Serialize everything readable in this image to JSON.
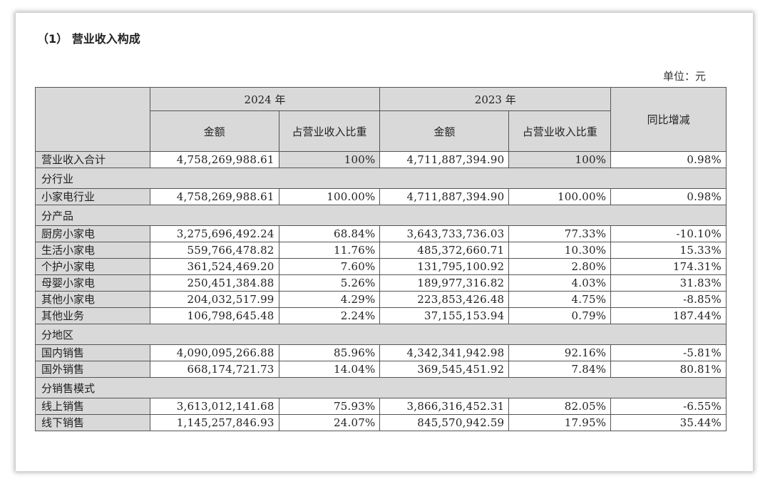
{
  "title": "（1） 营业收入构成",
  "unit": "单位：元",
  "headers": {
    "year_2024": "2024 年",
    "year_2023": "2023 年",
    "amount": "金额",
    "ratio_2024": "占营业收入比重",
    "ratio_2023": "占营业收入比重",
    "yoy": "同比增减"
  },
  "total": {
    "label": "营业收入合计",
    "amt2024": "4,758,269,988.61",
    "pct2024": "100%",
    "amt2023": "4,711,887,394.90",
    "pct2023": "100%",
    "yoy": "0.98%"
  },
  "sections": {
    "industry": "分行业",
    "product": "分产品",
    "region": "分地区",
    "channel": "分销售模式"
  },
  "industry_rows": [
    {
      "label": "小家电行业",
      "amt2024": "4,758,269,988.61",
      "pct2024": "100.00%",
      "amt2023": "4,711,887,394.90",
      "pct2023": "100.00%",
      "yoy": "0.98%"
    }
  ],
  "product_rows": [
    {
      "label": "厨房小家电",
      "amt2024": "3,275,696,492.24",
      "pct2024": "68.84%",
      "amt2023": "3,643,733,736.03",
      "pct2023": "77.33%",
      "yoy": "-10.10%"
    },
    {
      "label": "生活小家电",
      "amt2024": "559,766,478.82",
      "pct2024": "11.76%",
      "amt2023": "485,372,660.71",
      "pct2023": "10.30%",
      "yoy": "15.33%"
    },
    {
      "label": "个护小家电",
      "amt2024": "361,524,469.20",
      "pct2024": "7.60%",
      "amt2023": "131,795,100.92",
      "pct2023": "2.80%",
      "yoy": "174.31%"
    },
    {
      "label": "母婴小家电",
      "amt2024": "250,451,384.88",
      "pct2024": "5.26%",
      "amt2023": "189,977,316.82",
      "pct2023": "4.03%",
      "yoy": "31.83%"
    },
    {
      "label": "其他小家电",
      "amt2024": "204,032,517.99",
      "pct2024": "4.29%",
      "amt2023": "223,853,426.48",
      "pct2023": "4.75%",
      "yoy": "-8.85%"
    },
    {
      "label": "其他业务",
      "amt2024": "106,798,645.48",
      "pct2024": "2.24%",
      "amt2023": "37,155,153.94",
      "pct2023": "0.79%",
      "yoy": "187.44%"
    }
  ],
  "region_rows": [
    {
      "label": "国内销售",
      "amt2024": "4,090,095,266.88",
      "pct2024": "85.96%",
      "amt2023": "4,342,341,942.98",
      "pct2023": "92.16%",
      "yoy": "-5.81%"
    },
    {
      "label": "国外销售",
      "amt2024": "668,174,721.73",
      "pct2024": "14.04%",
      "amt2023": "369,545,451.92",
      "pct2023": "7.84%",
      "yoy": "80.81%"
    }
  ],
  "channel_rows": [
    {
      "label": "线上销售",
      "amt2024": "3,613,012,141.68",
      "pct2024": "75.93%",
      "amt2023": "3,866,316,452.31",
      "pct2023": "82.05%",
      "yoy": "-6.55%"
    },
    {
      "label": "线下销售",
      "amt2024": "1,145,257,846.93",
      "pct2024": "24.07%",
      "amt2023": "845,570,942.59",
      "pct2023": "17.95%",
      "yoy": "35.44%"
    }
  ]
}
